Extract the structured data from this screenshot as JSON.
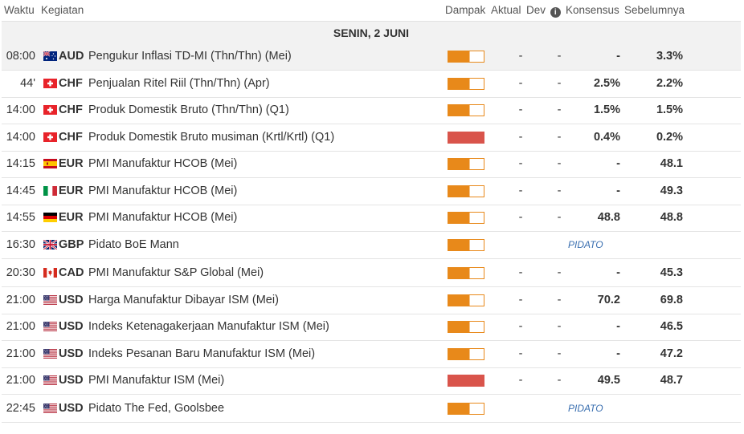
{
  "columns": {
    "time": "Waktu",
    "event": "Kegiatan",
    "impact": "Dampak",
    "actual": "Aktual",
    "dev": "Dev",
    "consensus": "Konsensus",
    "previous": "Sebelumnya"
  },
  "date_label": "SENIN, 2 JUNI",
  "colors": {
    "medium": "#e8891a",
    "high": "#d9544b",
    "note": "#3a6fb0"
  },
  "events": [
    {
      "time": "08:00",
      "flag": "au-flag-icon",
      "currency": "AUD",
      "name": "Pengukur Inflasi TD-MI (Thn/Thn) (Mei)",
      "impact": "medium",
      "actual": "-",
      "dev": "-",
      "consensus": "-",
      "previous": "3.3%",
      "highlight": true
    },
    {
      "time": "44'",
      "flag": "ch-flag-icon",
      "currency": "CHF",
      "name": "Penjualan Ritel Riil (Thn/Thn) (Apr)",
      "impact": "medium",
      "actual": "-",
      "dev": "-",
      "consensus": "2.5%",
      "previous": "2.2%"
    },
    {
      "time": "14:00",
      "flag": "ch-flag-icon",
      "currency": "CHF",
      "name": "Produk Domestik Bruto (Thn/Thn) (Q1)",
      "impact": "medium",
      "actual": "-",
      "dev": "-",
      "consensus": "1.5%",
      "previous": "1.5%"
    },
    {
      "time": "14:00",
      "flag": "ch-flag-icon",
      "currency": "CHF",
      "name": "Produk Domestik Bruto musiman (Krtl/Krtl) (Q1)",
      "impact": "high",
      "actual": "-",
      "dev": "-",
      "consensus": "0.4%",
      "previous": "0.2%"
    },
    {
      "time": "14:15",
      "flag": "es-flag-icon",
      "currency": "EUR",
      "name": "PMI Manufaktur HCOB (Mei)",
      "impact": "medium",
      "actual": "-",
      "dev": "-",
      "consensus": "-",
      "previous": "48.1"
    },
    {
      "time": "14:45",
      "flag": "it-flag-icon",
      "currency": "EUR",
      "name": "PMI Manufaktur HCOB (Mei)",
      "impact": "medium",
      "actual": "-",
      "dev": "-",
      "consensus": "-",
      "previous": "49.3"
    },
    {
      "time": "14:55",
      "flag": "de-flag-icon",
      "currency": "EUR",
      "name": "PMI Manufaktur HCOB (Mei)",
      "impact": "medium",
      "actual": "-",
      "dev": "-",
      "consensus": "48.8",
      "previous": "48.8"
    },
    {
      "time": "16:30",
      "flag": "gb-flag-icon",
      "currency": "GBP",
      "name": "Pidato BoE Mann",
      "impact": "medium",
      "note": "PIDATO"
    },
    {
      "time": "20:30",
      "flag": "ca-flag-icon",
      "currency": "CAD",
      "name": "PMI Manufaktur S&P Global (Mei)",
      "impact": "medium",
      "actual": "-",
      "dev": "-",
      "consensus": "-",
      "previous": "45.3"
    },
    {
      "time": "21:00",
      "flag": "us-flag-icon",
      "currency": "USD",
      "name": "Harga Manufaktur Dibayar ISM (Mei)",
      "impact": "medium",
      "actual": "-",
      "dev": "-",
      "consensus": "70.2",
      "previous": "69.8"
    },
    {
      "time": "21:00",
      "flag": "us-flag-icon",
      "currency": "USD",
      "name": "Indeks Ketenagakerjaan Manufaktur ISM (Mei)",
      "impact": "medium",
      "actual": "-",
      "dev": "-",
      "consensus": "-",
      "previous": "46.5"
    },
    {
      "time": "21:00",
      "flag": "us-flag-icon",
      "currency": "USD",
      "name": "Indeks Pesanan Baru Manufaktur ISM (Mei)",
      "impact": "medium",
      "actual": "-",
      "dev": "-",
      "consensus": "-",
      "previous": "47.2"
    },
    {
      "time": "21:00",
      "flag": "us-flag-icon",
      "currency": "USD",
      "name": "PMI Manufaktur ISM (Mei)",
      "impact": "high",
      "actual": "-",
      "dev": "-",
      "consensus": "49.5",
      "previous": "48.7"
    },
    {
      "time": "22:45",
      "flag": "us-flag-icon",
      "currency": "USD",
      "name": "Pidato The Fed, Goolsbee",
      "impact": "medium",
      "note": "PIDATO"
    }
  ]
}
